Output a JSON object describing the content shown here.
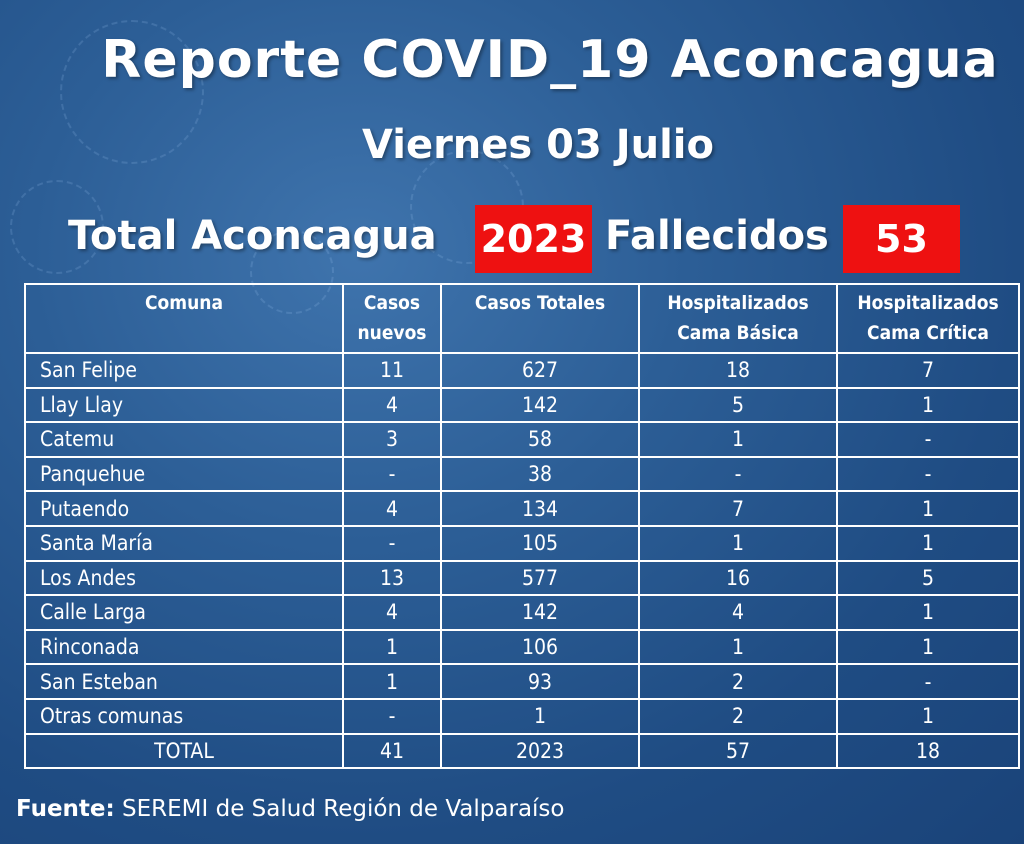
{
  "header": {
    "title": "Reporte COVID_19 Aconcagua",
    "subtitle": "Viernes 03 Julio"
  },
  "summary": {
    "total_label": "Total  Aconcagua",
    "total_value": "2023",
    "deaths_label": "Fallecidos",
    "deaths_value": "53",
    "highlight_color": "#ee1111"
  },
  "table": {
    "headers": {
      "comuna": "Comuna",
      "casos_nuevos_1": "Casos",
      "casos_nuevos_2": "nuevos",
      "casos_totales": "Casos Totales",
      "hosp_basica_1": "Hospitalizados",
      "hosp_basica_2": "Cama Básica",
      "hosp_critica_1": "Hospitalizados",
      "hosp_critica_2": "Cama Crítica"
    },
    "rows": [
      {
        "comuna": "San Felipe",
        "nuevos": "11",
        "totales": "627",
        "basica": "18",
        "critica": "7"
      },
      {
        "comuna": "Llay Llay",
        "nuevos": "4",
        "totales": "142",
        "basica": "5",
        "critica": "1"
      },
      {
        "comuna": "Catemu",
        "nuevos": "3",
        "totales": "58",
        "basica": "1",
        "critica": "-"
      },
      {
        "comuna": "Panquehue",
        "nuevos": "-",
        "totales": "38",
        "basica": "-",
        "critica": "-"
      },
      {
        "comuna": "Putaendo",
        "nuevos": "4",
        "totales": "134",
        "basica": "7",
        "critica": "1"
      },
      {
        "comuna": "Santa María",
        "nuevos": "-",
        "totales": "105",
        "basica": "1",
        "critica": "1"
      },
      {
        "comuna": "Los Andes",
        "nuevos": "13",
        "totales": "577",
        "basica": "16",
        "critica": "5"
      },
      {
        "comuna": "Calle Larga",
        "nuevos": "4",
        "totales": "142",
        "basica": "4",
        "critica": "1"
      },
      {
        "comuna": "Rinconada",
        "nuevos": "1",
        "totales": "106",
        "basica": "1",
        "critica": "1"
      },
      {
        "comuna": "San Esteban",
        "nuevos": "1",
        "totales": "93",
        "basica": "2",
        "critica": "-"
      },
      {
        "comuna": "Otras comunas",
        "nuevos": "-",
        "totales": "1",
        "basica": "2",
        "critica": "1"
      }
    ],
    "total_row": {
      "comuna": "TOTAL",
      "nuevos": "41",
      "totales": "2023",
      "basica": "57",
      "critica": "18"
    }
  },
  "footer": {
    "source_label": "Fuente:",
    "source_text": "SEREMI de Salud Región de Valparaíso"
  }
}
